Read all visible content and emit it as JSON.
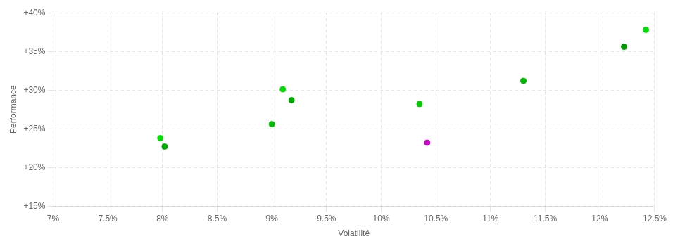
{
  "chart_data": {
    "type": "scatter",
    "x": [
      7.98,
      8.02,
      9.0,
      9.1,
      9.18,
      10.35,
      10.42,
      11.3,
      12.22,
      12.42
    ],
    "values": [
      23.8,
      22.7,
      25.6,
      30.1,
      28.7,
      28.2,
      23.2,
      31.2,
      35.6,
      37.8
    ],
    "colors": [
      "#00dd00",
      "#00aa00",
      "#00bb00",
      "#00dd00",
      "#00aa00",
      "#00cc00",
      "#cc00cc",
      "#00bb00",
      "#009900",
      "#00dd00"
    ],
    "xlabel": "Volatilité",
    "ylabel": "Performance",
    "xlim": [
      7.0,
      12.5
    ],
    "ylim": [
      15.0,
      40.0
    ],
    "xticks": [
      {
        "value": 7.0,
        "label": "7%"
      },
      {
        "value": 7.5,
        "label": "7.5%"
      },
      {
        "value": 8.0,
        "label": "8%"
      },
      {
        "value": 8.5,
        "label": "8.5%"
      },
      {
        "value": 9.0,
        "label": "9%"
      },
      {
        "value": 9.5,
        "label": "9.5%"
      },
      {
        "value": 10.0,
        "label": "10%"
      },
      {
        "value": 10.5,
        "label": "10.5%"
      },
      {
        "value": 11.0,
        "label": "11%"
      },
      {
        "value": 11.5,
        "label": "11.5%"
      },
      {
        "value": 12.0,
        "label": "12%"
      },
      {
        "value": 12.5,
        "label": "12.5%"
      }
    ],
    "yticks": [
      {
        "value": 15,
        "label": "+15%"
      },
      {
        "value": 20,
        "label": "+20%"
      },
      {
        "value": 25,
        "label": "+25%"
      },
      {
        "value": 30,
        "label": "+30%"
      },
      {
        "value": 35,
        "label": "+35%"
      },
      {
        "value": 40,
        "label": "+40%"
      }
    ],
    "grid": true
  }
}
